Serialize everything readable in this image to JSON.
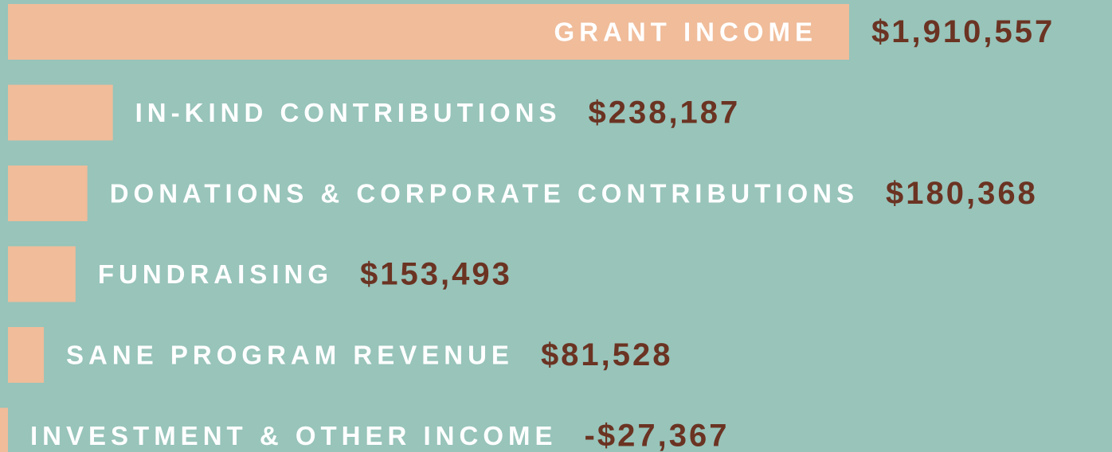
{
  "chart_data": {
    "type": "bar",
    "orientation": "horizontal",
    "categories": [
      "GRANT INCOME",
      "IN-KIND CONTRIBUTIONS",
      "DONATIONS & CORPORATE CONTRIBUTIONS",
      "FUNDRAISING",
      "SANE PROGRAM REVENUE",
      "INVESTMENT & OTHER INCOME"
    ],
    "values": [
      1910557,
      238187,
      180368,
      153493,
      81528,
      -27367
    ],
    "value_labels": [
      "$1,910,557",
      "$238,187",
      "$180,368",
      "$153,493",
      "$81,528",
      "-$27,367"
    ],
    "color": "#f0bc9a"
  }
}
